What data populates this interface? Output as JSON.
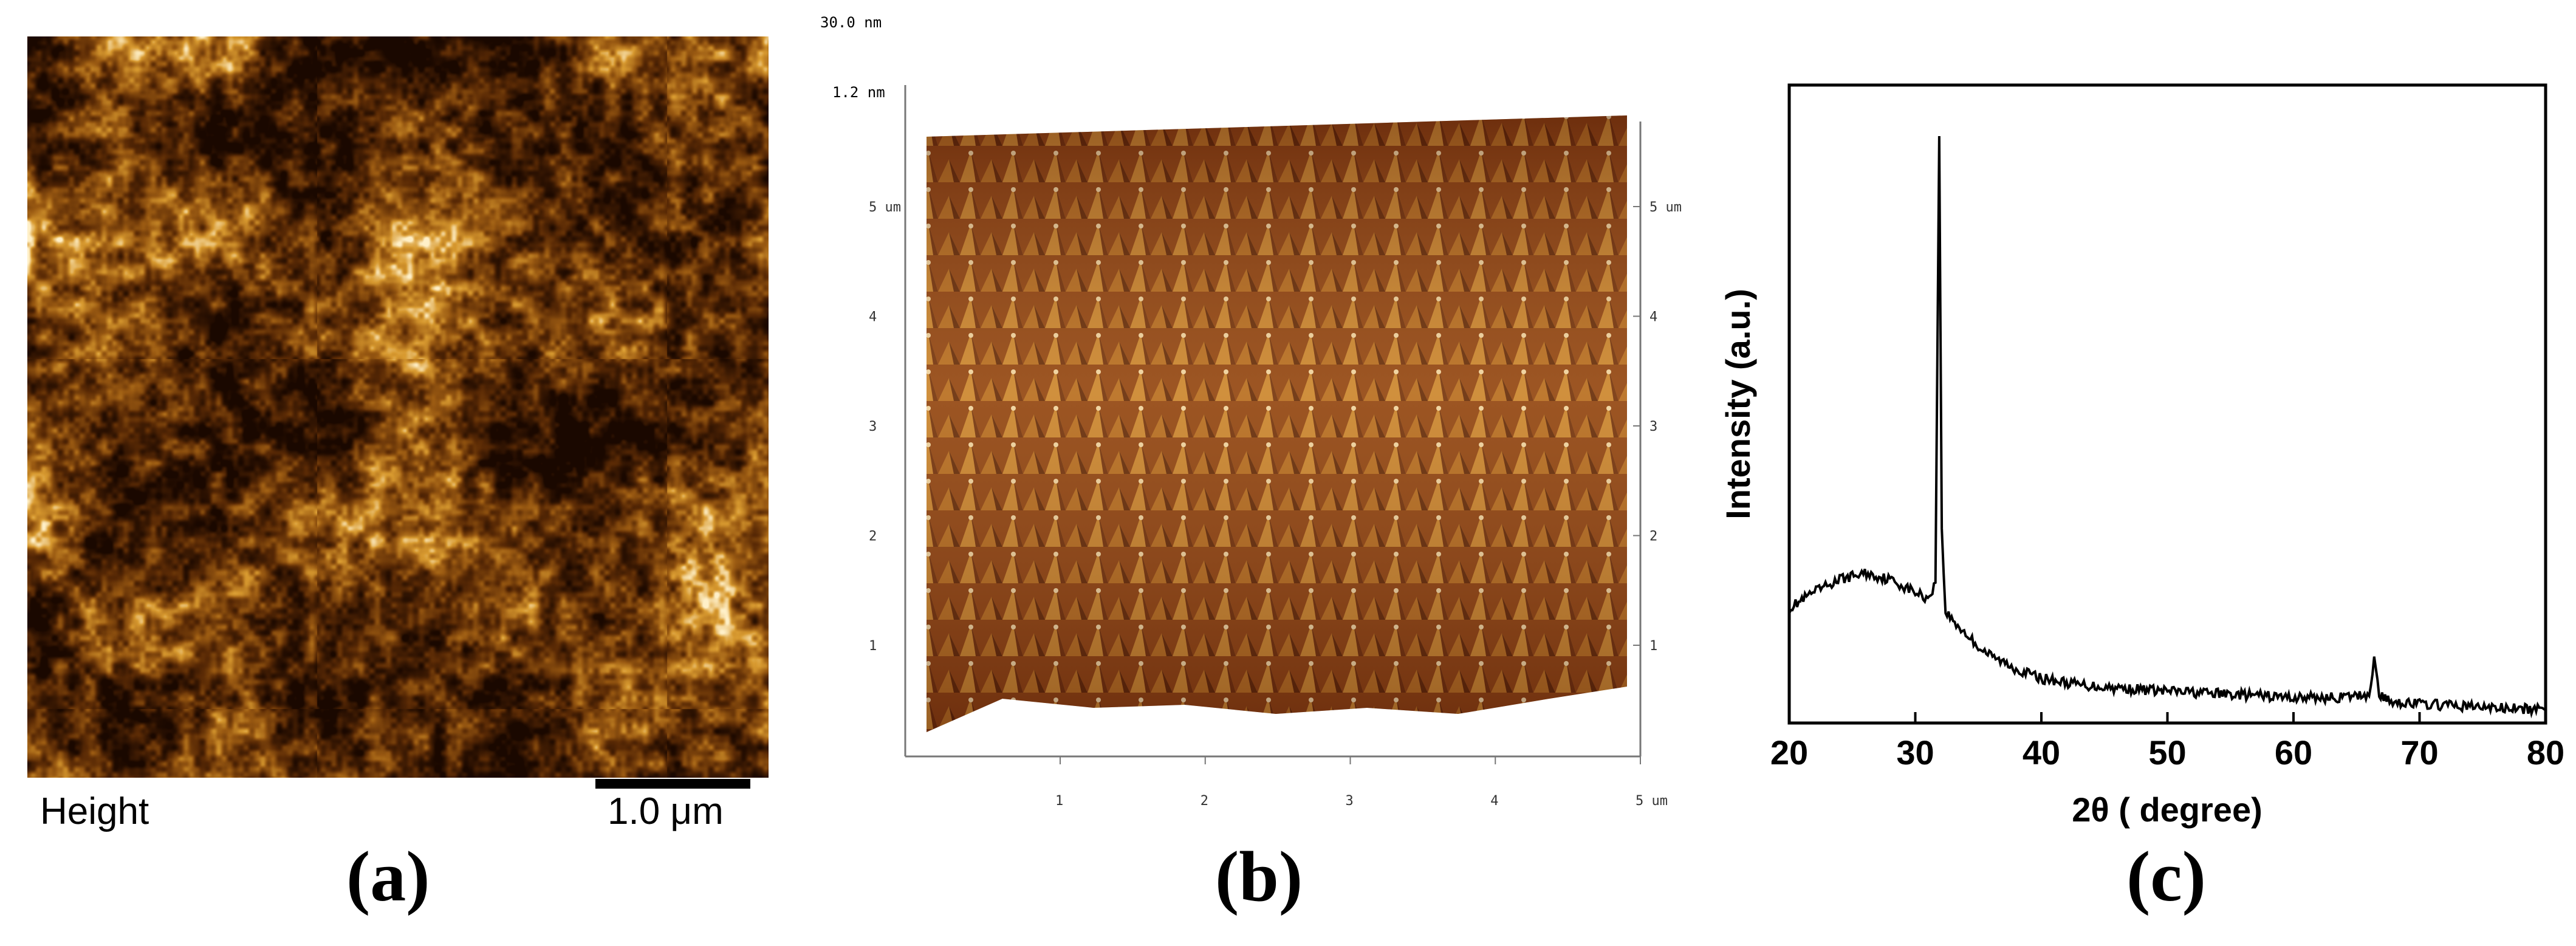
{
  "panel_a": {
    "label": "(a)",
    "channel_label": "Height",
    "scale_bar_label": "1.0 μm",
    "colormap": [
      "#1a0800",
      "#5a2a05",
      "#9a5a12",
      "#d89a30",
      "#fff0c8"
    ]
  },
  "panel_b": {
    "label": "(b)",
    "z_top_label": "30.0 nm",
    "z_label": "1.2 nm",
    "left_axis": {
      "ticks": [
        "1",
        "2",
        "3",
        "4",
        "5 um"
      ]
    },
    "right_axis": {
      "ticks": [
        "1",
        "2",
        "3",
        "4",
        "5 um"
      ]
    },
    "bottom_axis": {
      "ticks": [
        "1",
        "2",
        "3",
        "4",
        "5 um"
      ]
    },
    "colormap": [
      "#3a0f05",
      "#7a3010",
      "#b06a20",
      "#dca050",
      "#f8ecd6"
    ]
  },
  "panel_c": {
    "label": "(c)"
  },
  "chart_data": {
    "type": "line",
    "title": "",
    "xlabel": "2θ ( degree)",
    "ylabel": "Intensity (a.u.)",
    "xlim": [
      20,
      80
    ],
    "ylim": [
      0,
      100
    ],
    "x_ticks": [
      20,
      30,
      40,
      50,
      60,
      70,
      80
    ],
    "y_ticks_shown": false,
    "grid": false,
    "series": [
      {
        "x": [
          20,
          22,
          24,
          26,
          28,
          30,
          31,
          31.6,
          31.9,
          32.1,
          32.4,
          33,
          34,
          35,
          36,
          38,
          40,
          43,
          46,
          50,
          55,
          60,
          64,
          66,
          66.4,
          66.8,
          67.5,
          70,
          75,
          80
        ],
        "y": [
          18,
          20.5,
          22.5,
          23.5,
          22.5,
          20.5,
          19.5,
          22,
          92,
          30,
          17.5,
          16,
          14,
          12,
          10.5,
          8.5,
          7,
          6,
          5.5,
          5,
          4.5,
          4,
          4,
          4.5,
          10,
          4.5,
          3.5,
          3,
          2.5,
          2
        ]
      }
    ]
  }
}
